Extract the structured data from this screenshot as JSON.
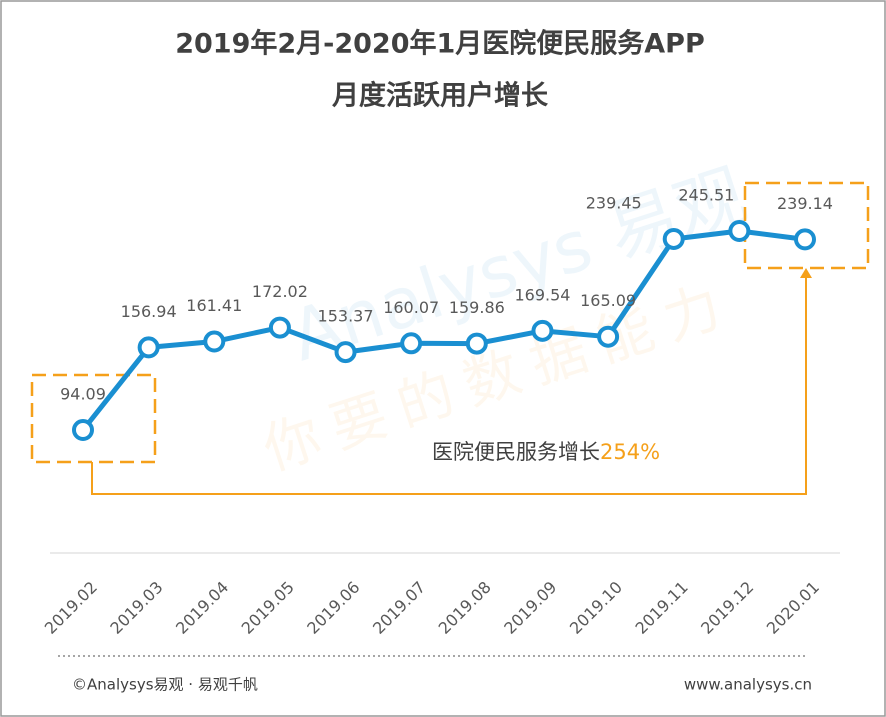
{
  "chart_data": {
    "type": "line",
    "title": "2019年2月-2020年1月医院便民服务APP",
    "subtitle": "月度活跃用户增长",
    "categories": [
      "2019.02",
      "2019.03",
      "2019.04",
      "2019.05",
      "2019.06",
      "2019.07",
      "2019.08",
      "2019.09",
      "2019.10",
      "2019.11",
      "2019.12",
      "2020.01"
    ],
    "values": [
      94.09,
      156.94,
      161.41,
      172.02,
      153.37,
      160.07,
      159.86,
      169.54,
      165.09,
      239.45,
      245.51,
      239.14
    ],
    "color": "#1a8fd1",
    "annotation": {
      "text": "医院便民服务增长",
      "highlight": "254%",
      "highlight_color": "#f5a01a"
    },
    "watermark": {
      "brand": "Analysys 易观",
      "slogan": "你要的数据能力"
    },
    "footer": {
      "left": "©Analysys易观 · 易观千帆",
      "right": "www.analysys.cn"
    }
  }
}
